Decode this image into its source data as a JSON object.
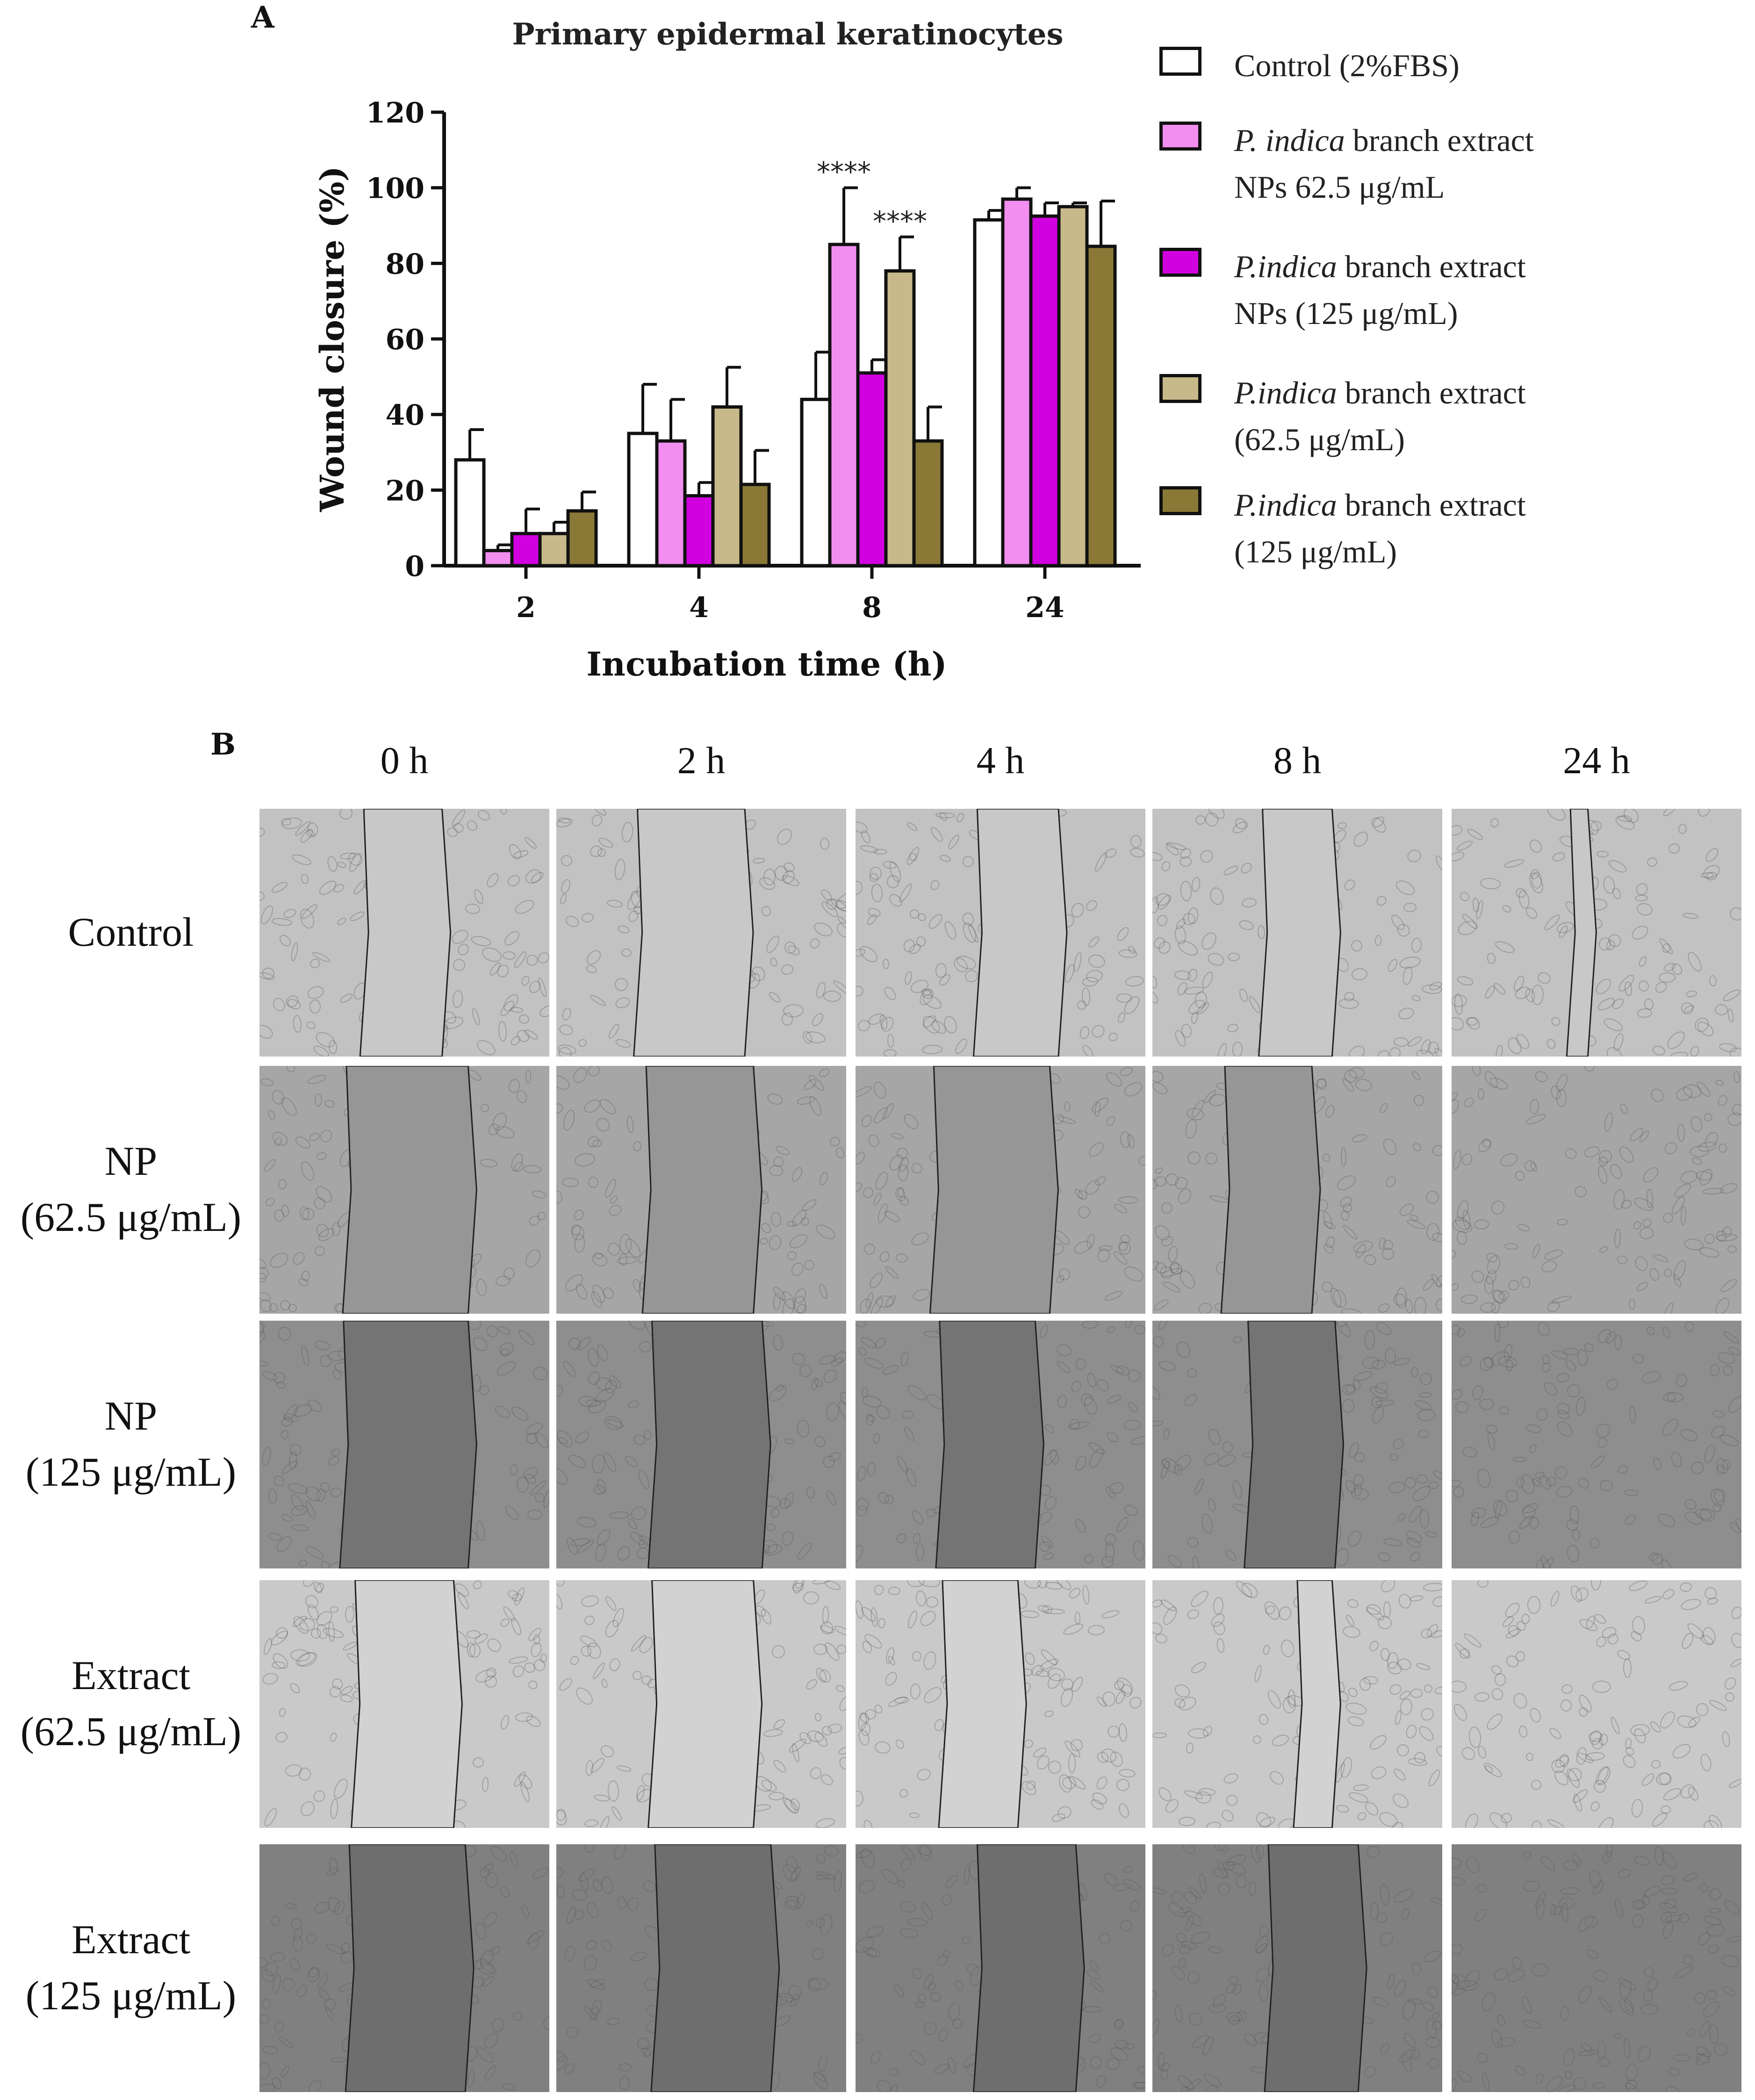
{
  "panel_a_label": "A",
  "panel_b_label": "B",
  "chart_data": {
    "type": "bar",
    "title": "Primary epidermal keratinocytes",
    "xlabel": "Incubation time (h)",
    "ylabel": "Wound closure (%)",
    "ylim": [
      0,
      120
    ],
    "yticks": [
      0,
      20,
      40,
      60,
      80,
      100,
      120
    ],
    "categories": [
      "2",
      "4",
      "8",
      "24"
    ],
    "series": [
      {
        "name": "Control (2%FBS)",
        "color": "#ffffff",
        "values": [
          28,
          35,
          44,
          91.5
        ],
        "errors": [
          8,
          13,
          12.5,
          2.5
        ]
      },
      {
        "name": "P. indica branch extract NPs 62.5 μg/mL",
        "color": "#f28ef0",
        "values": [
          4,
          33,
          85,
          97
        ],
        "errors": [
          1.5,
          11,
          15,
          3
        ]
      },
      {
        "name": "P.indica branch extract NPs (125 μg/mL)",
        "color": "#d100e0",
        "values": [
          8.5,
          18.5,
          51,
          92.5
        ],
        "errors": [
          6.5,
          3.5,
          3.5,
          3.5
        ]
      },
      {
        "name": "P.indica branch extract (62.5 μg/mL)",
        "color": "#c8b98a",
        "values": [
          8.5,
          42,
          78,
          95
        ],
        "errors": [
          3,
          10.5,
          9,
          1
        ]
      },
      {
        "name": "P.indica branch extract (125 μg/mL)",
        "color": "#8a7836",
        "values": [
          14.5,
          21.5,
          33,
          84.5
        ],
        "errors": [
          5,
          9,
          9,
          12
        ]
      }
    ],
    "annotations": [
      {
        "category": "8",
        "series": 1,
        "text": "****"
      },
      {
        "category": "8",
        "series": 3,
        "text": "****"
      }
    ]
  },
  "legend": [
    {
      "lines": [
        {
          "italic": "",
          "rest": "Control (2%FBS)"
        }
      ]
    },
    {
      "lines": [
        {
          "italic": "P. indica",
          "rest": " branch extract"
        },
        {
          "italic": "",
          "rest": "NPs 62.5 μg/mL"
        }
      ]
    },
    {
      "lines": [
        {
          "italic": "P.indica",
          "rest": " branch extract"
        },
        {
          "italic": "",
          "rest": "NPs (125 μg/mL)"
        }
      ]
    },
    {
      "lines": [
        {
          "italic": "P.indica",
          "rest": " branch extract"
        },
        {
          "italic": "",
          "rest": "(62.5 μg/mL)"
        }
      ]
    },
    {
      "lines": [
        {
          "italic": "P.indica",
          "rest": " branch extract"
        },
        {
          "italic": "",
          "rest": " (125 μg/mL)"
        }
      ]
    }
  ],
  "micrographs": {
    "columns": [
      "0 h",
      "2 h",
      "4 h",
      "8 h",
      "24 h"
    ],
    "rows": [
      {
        "label_lines": [
          "Control"
        ]
      },
      {
        "label_lines": [
          "NP",
          "(62.5 μg/mL)"
        ]
      },
      {
        "label_lines": [
          "NP",
          "(125 μg/mL)"
        ]
      },
      {
        "label_lines": [
          "Extract",
          "(62.5 μg/mL)"
        ]
      },
      {
        "label_lines": [
          "Extract",
          "(125 μg/mL)"
        ]
      }
    ]
  }
}
